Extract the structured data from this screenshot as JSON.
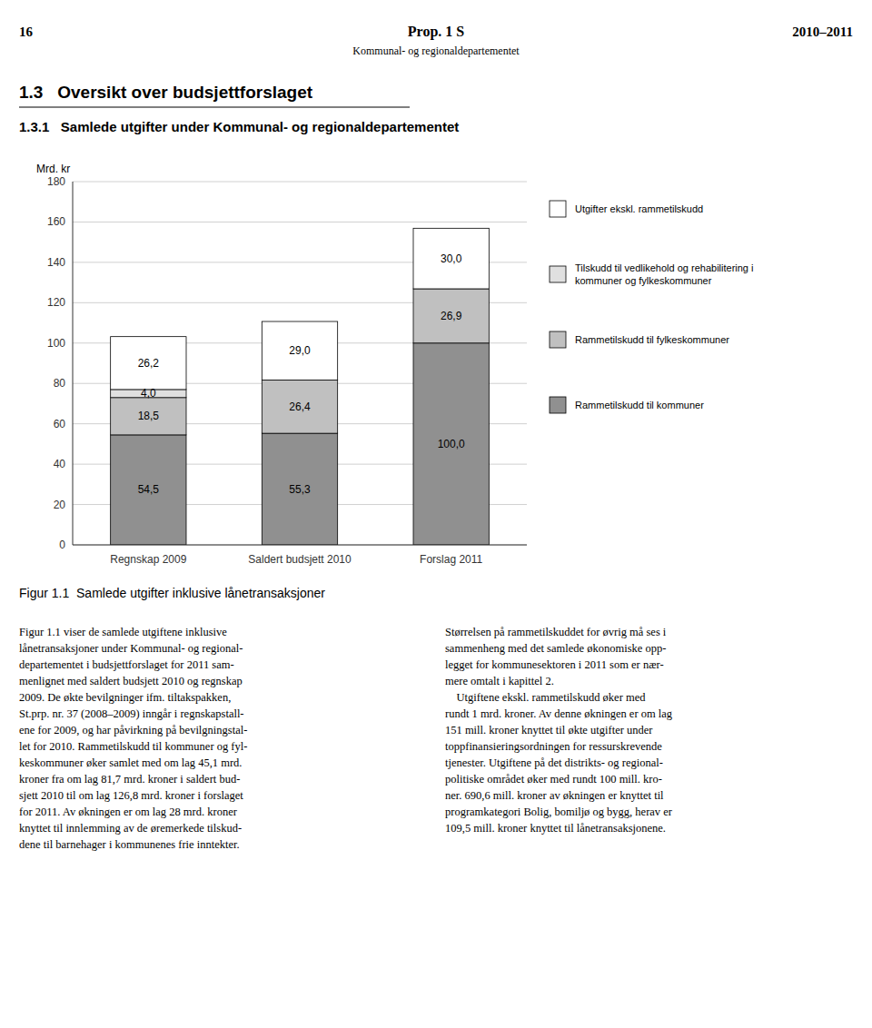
{
  "page": {
    "page_number": "16",
    "running_title": "Prop. 1 S",
    "running_subtitle": "Kommunal- og regionaldepartementet",
    "year": "2010–2011",
    "heading": "1.3   Oversikt over budsjettforslaget",
    "subheading": "1.3.1   Samlede utgifter under Kommunal- og regionaldepartementet",
    "body_left": "Figur 1.1 viser de samlede utgiftene inklusive\nlånetransaksjoner under Kommunal- og regional-\ndepartementet i budsjettforslaget for 2011 sam-\nmenlignet med saldert budsjett 2010 og regnskap\n2009. De økte bevilgninger ifm. tiltakspakken,\nSt.prp. nr. 37 (2008–2009) inngår i regnskapstall-\nene for 2009, og har påvirkning på bevilgningstal-\nlet for 2010. Rammetilskudd til kommuner og fyl-\nkeskommuner øker samlet med om lag 45,1 mrd.\nkroner fra om lag 81,7 mrd. kroner i saldert bud-\nsjett 2010 til om lag 126,8 mrd. kroner i forslaget\nfor 2011. Av økningen er om lag 28 mrd. kroner\nknyttet til innlemming av de øremerkede tilskud-\ndene til barnehager i kommunenes frie inntekter.",
    "body_right": "Størrelsen på rammetilskuddet for øvrig må ses i\nsammenheng med det samlede økonomiske opp-\nlegget for kommunesektoren i 2011 som er nær-\nmere omtalt i kapittel 2.\n    Utgiftene ekskl. rammetilskudd øker med\nrundt 1 mrd. kroner. Av denne økningen er om lag\n151 mill. kroner knyttet til økte utgifter under\ntoppfinansieringsordningen for ressurskrevende\ntjenester. Utgiftene på det distrikts- og regional-\npolitiske området øker med rundt 100 mill. kro-\nner. 690,6 mill. kroner av økningen er knyttet til\nprogramkategori Bolig, bomiljø og bygg, herav er\n109,5 mill. kroner knyttet til lånetransaksjonene."
  },
  "chart_data": {
    "type": "bar",
    "stacked": true,
    "title": "Figur 1.1  Samlede utgifter inklusive lånetransaksjoner",
    "y_label": "Mrd. kr",
    "categories": [
      "Regnskap 2009",
      "Saldert budsjett 2010",
      "Forslag 2011"
    ],
    "series": [
      {
        "name": "Rammetilskudd til kommuner",
        "color": "#909090",
        "values": [
          54.5,
          55.3,
          100.0
        ],
        "value_labels": [
          "54,5",
          "55,3",
          "100,0"
        ]
      },
      {
        "name": "Rammetilskudd til fylkeskommuner",
        "color": "#c0c0c0",
        "values": [
          18.5,
          26.4,
          26.9
        ],
        "value_labels": [
          "18,5",
          "26,4",
          "26,9"
        ]
      },
      {
        "name": "Tilskudd til vedlikehold og rehabilitering i\nkommuner og fylkeskommuner",
        "color": "#e0e0e0",
        "values": [
          4.0,
          0.0,
          0.0
        ],
        "value_labels": [
          "4,0",
          null,
          null
        ]
      },
      {
        "name": "Utgifter ekskl. rammetilskudd",
        "color": "#ffffff",
        "values": [
          26.2,
          29.0,
          30.0
        ],
        "value_labels": [
          "26,2",
          "29,0",
          "30,0"
        ]
      }
    ],
    "ylim": [
      0,
      180
    ],
    "yticks": [
      0,
      20,
      40,
      60,
      80,
      100,
      120,
      140,
      160,
      180
    ],
    "grid": true,
    "data_labels": true,
    "legend": "right"
  }
}
